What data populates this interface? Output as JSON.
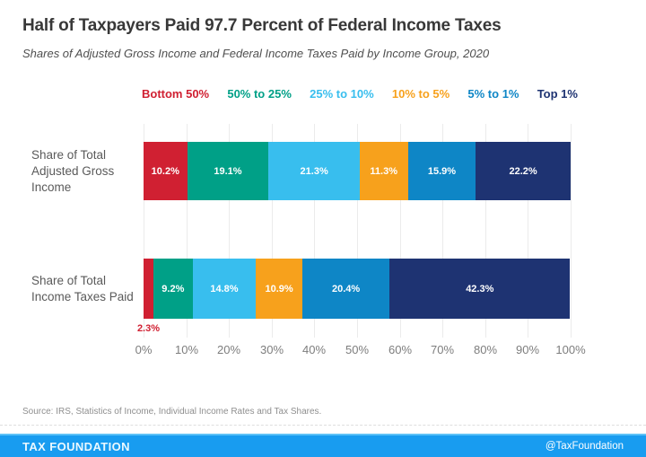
{
  "header": {
    "title": "Half of Taxpayers Paid 97.7 Percent of Federal Income Taxes",
    "subtitle": "Shares of Adjusted Gross Income and Federal Income Taxes Paid by Income Group, 2020"
  },
  "chart_data": {
    "type": "bar",
    "variant": "horizontal-stacked",
    "unit": "%",
    "title": "Half of Taxpayers Paid 97.7 Percent of Federal Income Taxes",
    "categories": [
      "Share of Total Adjusted Gross Income",
      "Share of Total Income Taxes Paid"
    ],
    "category_label_lines": [
      [
        "Share of Total",
        "Adjusted Gross",
        "Income"
      ],
      [
        "Share of Total",
        "Income Taxes Paid"
      ]
    ],
    "series": [
      {
        "name": "Bottom 50%",
        "color": "#D02032",
        "values": [
          10.2,
          2.3
        ]
      },
      {
        "name": "50% to 25%",
        "color": "#00A087",
        "values": [
          19.1,
          9.2
        ]
      },
      {
        "name": "25% to 10%",
        "color": "#38BEEE",
        "values": [
          21.3,
          14.8
        ]
      },
      {
        "name": "10% to 5%",
        "color": "#F7A11C",
        "values": [
          11.3,
          10.9
        ]
      },
      {
        "name": "5% to 1%",
        "color": "#0E86C6",
        "values": [
          15.9,
          20.4
        ]
      },
      {
        "name": "Top 1%",
        "color": "#1E3372",
        "values": [
          22.2,
          42.3
        ]
      }
    ],
    "x_ticks": [
      "0%",
      "10%",
      "20%",
      "30%",
      "40%",
      "50%",
      "60%",
      "70%",
      "80%",
      "90%",
      "100%"
    ],
    "xlim": [
      0,
      100
    ],
    "grid": true,
    "legend_position": "top",
    "value_label_style": "white labels inside segments; narrow segments labeled below bar in series color",
    "outside_label_threshold_pct": 5
  },
  "footer": {
    "source": "Source: IRS, Statistics of Income, Individual Income Rates and Tax Shares.",
    "brand": "TAX FOUNDATION",
    "handle": "@TaxFoundation",
    "bar_color": "#189CF0"
  }
}
